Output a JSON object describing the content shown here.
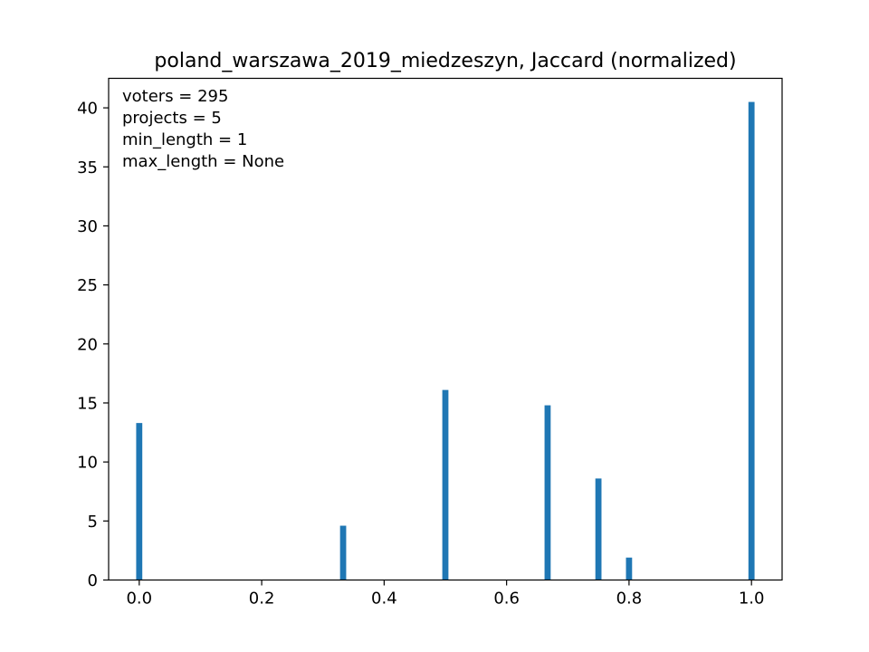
{
  "chart_data": {
    "type": "bar",
    "title": "poland_warszawa_2019_miedzeszyn, Jaccard (normalized)",
    "xlabel": "",
    "ylabel": "",
    "xlim": [
      -0.05,
      1.05
    ],
    "ylim": [
      0,
      42.5
    ],
    "bar_width": 0.01,
    "x": [
      0.0,
      0.333,
      0.5,
      0.667,
      0.75,
      0.8,
      1.0
    ],
    "values": [
      13.3,
      4.6,
      16.1,
      14.8,
      8.6,
      1.9,
      40.5
    ],
    "xticks": [
      0.0,
      0.2,
      0.4,
      0.6,
      0.8,
      1.0
    ],
    "xtick_labels": [
      "0.0",
      "0.2",
      "0.4",
      "0.6",
      "0.8",
      "1.0"
    ],
    "yticks": [
      0,
      5,
      10,
      15,
      20,
      25,
      30,
      35,
      40
    ],
    "ytick_labels": [
      "0",
      "5",
      "10",
      "15",
      "20",
      "25",
      "30",
      "35",
      "40"
    ],
    "annotations": [
      "voters = 295",
      "projects = 5",
      "min_length = 1",
      "max_length = None"
    ],
    "bar_color": "#1f77b4",
    "grid": false,
    "legend": "none"
  }
}
